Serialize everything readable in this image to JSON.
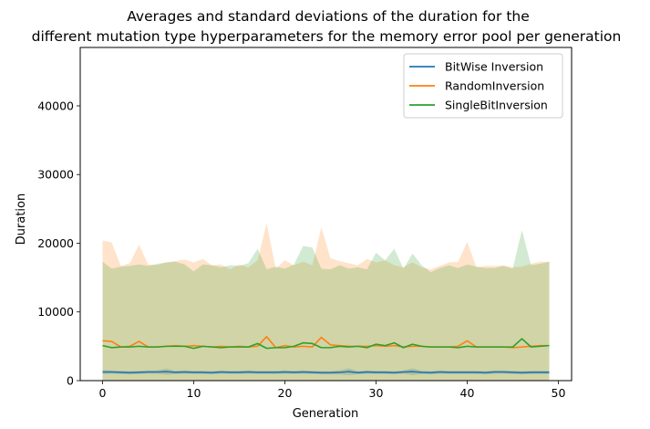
{
  "chart_data": {
    "type": "line",
    "title_lines": [
      "Averages and standard deviations of the duration for the",
      "different mutation type hyperparameters for the memory error pool per generation"
    ],
    "xlabel": "Generation",
    "ylabel": "Duration",
    "xlim": [
      -2.45,
      51.45
    ],
    "ylim": [
      0,
      48500
    ],
    "xticks": [
      0,
      10,
      20,
      30,
      40,
      50
    ],
    "yticks": [
      0,
      10000,
      20000,
      30000,
      40000
    ],
    "legend_position": "top-right",
    "x": [
      0,
      1,
      2,
      3,
      4,
      5,
      6,
      7,
      8,
      9,
      10,
      11,
      12,
      13,
      14,
      15,
      16,
      17,
      18,
      19,
      20,
      21,
      22,
      23,
      24,
      25,
      26,
      27,
      28,
      29,
      30,
      31,
      32,
      33,
      34,
      35,
      36,
      37,
      38,
      39,
      40,
      41,
      42,
      43,
      44,
      45,
      46,
      47,
      48,
      49
    ],
    "series": [
      {
        "name": "BitWise Inversion",
        "color": "#1f77b4",
        "mean": [
          1250,
          1250,
          1200,
          1150,
          1200,
          1250,
          1250,
          1300,
          1200,
          1250,
          1200,
          1200,
          1150,
          1250,
          1200,
          1200,
          1250,
          1200,
          1200,
          1200,
          1250,
          1200,
          1250,
          1200,
          1150,
          1150,
          1200,
          1300,
          1150,
          1250,
          1200,
          1200,
          1150,
          1250,
          1300,
          1200,
          1150,
          1250,
          1200,
          1200,
          1200,
          1200,
          1150,
          1250,
          1250,
          1200,
          1150,
          1200,
          1200,
          1200
        ],
        "upper": [
          1550,
          1500,
          1450,
          1400,
          1450,
          1500,
          1500,
          1750,
          1450,
          1500,
          1450,
          1450,
          1400,
          1500,
          1450,
          1450,
          1500,
          1450,
          1450,
          1450,
          1500,
          1450,
          1500,
          1450,
          1400,
          1400,
          1500,
          1800,
          1400,
          1500,
          1450,
          1450,
          1400,
          1500,
          1800,
          1450,
          1400,
          1500,
          1450,
          1450,
          1450,
          1450,
          1400,
          1500,
          1500,
          1450,
          1400,
          1450,
          1450,
          1450
        ],
        "lower": [
          950,
          1000,
          950,
          900,
          950,
          1000,
          1000,
          850,
          950,
          1000,
          950,
          950,
          900,
          1000,
          950,
          950,
          1000,
          950,
          950,
          950,
          1000,
          950,
          1000,
          950,
          900,
          900,
          900,
          800,
          900,
          1000,
          950,
          950,
          900,
          1000,
          800,
          950,
          900,
          1000,
          950,
          950,
          950,
          950,
          900,
          1000,
          1000,
          950,
          900,
          950,
          950,
          950
        ]
      },
      {
        "name": "RandomInversion",
        "color": "#ff7f0e",
        "mean": [
          5800,
          5700,
          4900,
          5000,
          5700,
          4900,
          4900,
          5000,
          5100,
          5000,
          5100,
          5000,
          4900,
          5000,
          4900,
          5000,
          4900,
          5000,
          6400,
          4800,
          5100,
          4900,
          5000,
          4900,
          6300,
          5200,
          5100,
          5000,
          5000,
          5000,
          5100,
          5000,
          5100,
          4900,
          5000,
          5000,
          4900,
          4900,
          4900,
          5000,
          5800,
          4900,
          4900,
          4900,
          4900,
          4800,
          4900,
          5000,
          5100,
          5100
        ],
        "upper": [
          20400,
          20100,
          16700,
          17100,
          19800,
          16900,
          16800,
          17200,
          17400,
          17600,
          17200,
          17700,
          16800,
          16900,
          16200,
          16900,
          16500,
          17500,
          22900,
          16300,
          17500,
          16800,
          17300,
          16800,
          22300,
          17800,
          17400,
          17100,
          16800,
          17700,
          17200,
          17500,
          16800,
          16500,
          17200,
          16500,
          16200,
          16700,
          17200,
          17300,
          20200,
          16500,
          16700,
          16700,
          16800,
          16500,
          16600,
          17000,
          17300,
          17300
        ],
        "lower": [
          0,
          0,
          0,
          0,
          0,
          0,
          0,
          0,
          0,
          0,
          0,
          0,
          0,
          0,
          0,
          0,
          0,
          0,
          0,
          0,
          0,
          0,
          0,
          0,
          0,
          0,
          0,
          0,
          0,
          0,
          0,
          0,
          0,
          0,
          0,
          0,
          0,
          0,
          0,
          0,
          0,
          0,
          0,
          0,
          0,
          0,
          0,
          0,
          0,
          0
        ]
      },
      {
        "name": "SingleBitInversion",
        "color": "#2ca02c",
        "mean": [
          5100,
          4800,
          4900,
          4900,
          5000,
          4900,
          4900,
          5000,
          5000,
          5000,
          4700,
          5000,
          4900,
          4800,
          4900,
          4900,
          4900,
          5400,
          4700,
          4800,
          4800,
          5000,
          5500,
          5400,
          4800,
          4800,
          5000,
          4900,
          5000,
          4800,
          5300,
          5100,
          5500,
          4800,
          5300,
          5000,
          4900,
          4900,
          4900,
          4800,
          5000,
          4900,
          4900,
          4900,
          4900,
          4900,
          6100,
          4900,
          5000,
          5100
        ],
        "upper": [
          17300,
          16300,
          16600,
          16700,
          16900,
          16700,
          17000,
          17200,
          17300,
          16900,
          15900,
          16900,
          16800,
          16500,
          16800,
          16700,
          17100,
          19200,
          16200,
          16600,
          16300,
          16900,
          19600,
          19400,
          16300,
          16200,
          16800,
          16300,
          16500,
          16200,
          18600,
          17500,
          19200,
          16300,
          18500,
          16800,
          15800,
          16400,
          16800,
          16400,
          16900,
          16600,
          16400,
          16400,
          16700,
          16300,
          21900,
          16800,
          17000,
          17300
        ],
        "lower": [
          0,
          0,
          0,
          0,
          0,
          0,
          0,
          0,
          0,
          0,
          0,
          0,
          0,
          0,
          0,
          0,
          0,
          0,
          0,
          0,
          0,
          0,
          0,
          0,
          0,
          0,
          0,
          0,
          0,
          0,
          0,
          0,
          0,
          0,
          0,
          0,
          0,
          0,
          0,
          0,
          0,
          0,
          0,
          0,
          0,
          0,
          0,
          0,
          0,
          0
        ]
      }
    ]
  }
}
